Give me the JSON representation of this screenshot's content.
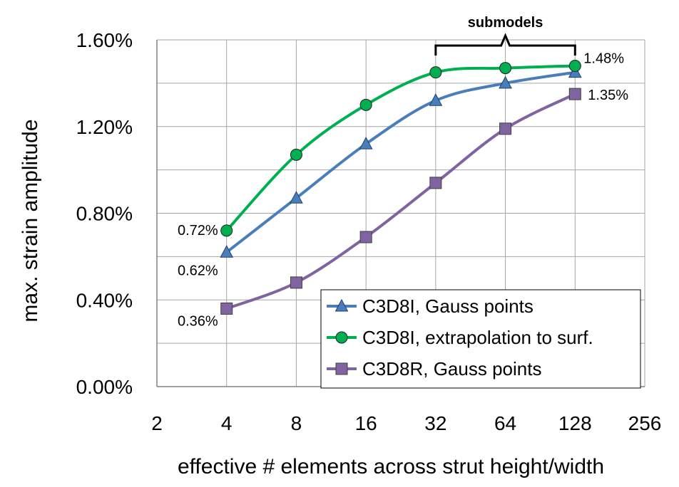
{
  "chart_data": {
    "type": "line",
    "xlabel": "effective # elements across strut height/width",
    "ylabel": "max. strain amplitude",
    "x_scale": "log2",
    "x_ticks": [
      2,
      4,
      8,
      16,
      32,
      64,
      128,
      256
    ],
    "y_ticks": [
      "0.00%",
      "0.40%",
      "0.80%",
      "1.20%",
      "1.60%"
    ],
    "ylim": [
      0,
      1.6
    ],
    "y_unit": "%",
    "grid": true,
    "legend_position": "bottom-right",
    "x": [
      4,
      8,
      16,
      32,
      64,
      128
    ],
    "series": [
      {
        "name": "C3D8I, Gauss points",
        "values": [
          0.62,
          0.87,
          1.12,
          1.32,
          1.4,
          1.45
        ],
        "color": "#4a7ebb",
        "marker": "triangle"
      },
      {
        "name": "C3D8I, extrapolation to surf.",
        "values": [
          0.72,
          1.07,
          1.3,
          1.45,
          1.47,
          1.48
        ],
        "color": "#00b050",
        "marker": "circle"
      },
      {
        "name": "C3D8R, Gauss points",
        "values": [
          0.36,
          0.48,
          0.69,
          0.94,
          1.19,
          1.35
        ],
        "color": "#8064a2",
        "marker": "square"
      }
    ],
    "annotations": [
      {
        "text": "0.72%",
        "series": 1,
        "point": 0
      },
      {
        "text": "0.62%",
        "series": 0,
        "point": 0
      },
      {
        "text": "0.36%",
        "series": 2,
        "point": 0
      },
      {
        "text": "1.48%",
        "series": 1,
        "point": 5
      },
      {
        "text": "1.35%",
        "series": 2,
        "point": 5
      }
    ],
    "bracket": {
      "text": "submodels",
      "x_from": 32,
      "x_to": 128
    }
  }
}
